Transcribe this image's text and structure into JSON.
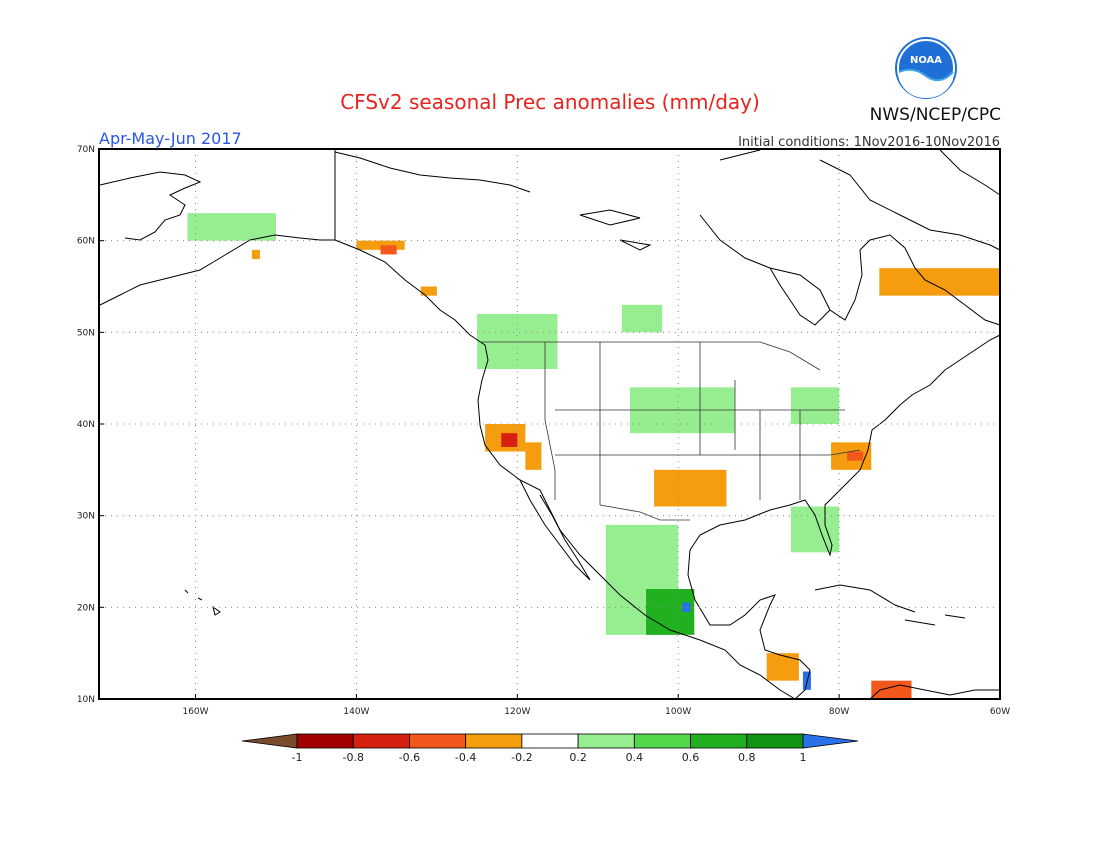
{
  "title": "CFSv2 seasonal Prec anomalies (mm/day)",
  "season": "Apr-May-Jun 2017",
  "initial_conditions": "Initial conditions: 1Nov2016-10Nov2016",
  "agency": "NWS/NCEP/CPC",
  "logo_text": "NOAA",
  "colors": {
    "title": "#e8231f",
    "season": "#2a55e6",
    "text": "#222222"
  },
  "map": {
    "lon_range": [
      -172,
      -60
    ],
    "lat_range": [
      10,
      70
    ],
    "lat_ticks": [
      {
        "value": 70,
        "label": "70N"
      },
      {
        "value": 60,
        "label": "60N"
      },
      {
        "value": 50,
        "label": "50N"
      },
      {
        "value": 40,
        "label": "40N"
      },
      {
        "value": 30,
        "label": "30N"
      },
      {
        "value": 20,
        "label": "20N"
      },
      {
        "value": 10,
        "label": "10N"
      }
    ],
    "lon_ticks": [
      {
        "value": -160,
        "label": "160W"
      },
      {
        "value": -140,
        "label": "140W"
      },
      {
        "value": -120,
        "label": "120W"
      },
      {
        "value": -100,
        "label": "100W"
      },
      {
        "value": -80,
        "label": "80W"
      },
      {
        "value": -60,
        "label": "60W"
      }
    ],
    "grid": "dotted"
  },
  "colorbar": {
    "labels": [
      "-1",
      "-0.8",
      "-0.6",
      "-0.4",
      "-0.2",
      "0.2",
      "0.4",
      "0.6",
      "0.8",
      "1"
    ],
    "bins": [
      {
        "range": "< -1",
        "color": "#7a4a2a"
      },
      {
        "range": "-1 to -0.8",
        "color": "#a00000"
      },
      {
        "range": "-0.8 to -0.6",
        "color": "#d62010"
      },
      {
        "range": "-0.6 to -0.4",
        "color": "#f2581c"
      },
      {
        "range": "-0.4 to -0.2",
        "color": "#f59d0f"
      },
      {
        "range": "-0.2 to 0.2",
        "color": "#ffffff"
      },
      {
        "range": "0.2 to 0.4",
        "color": "#96ee90"
      },
      {
        "range": "0.4 to 0.6",
        "color": "#50d84a"
      },
      {
        "range": "0.6 to 0.8",
        "color": "#20b020"
      },
      {
        "range": "0.8 to 1",
        "color": "#119411"
      },
      {
        "range": "> 1",
        "color": "#2a70e8"
      }
    ]
  },
  "anomaly_regions": [
    {
      "name": "Alaska west",
      "value": 0.3,
      "lon": [
        -161,
        -150
      ],
      "lat": [
        60,
        63
      ]
    },
    {
      "name": "Alaska southwest",
      "value": -0.3,
      "lon": [
        -153,
        -152
      ],
      "lat": [
        58,
        59
      ]
    },
    {
      "name": "Gulf of Alaska coast",
      "value": -0.3,
      "lon": [
        -140,
        -134
      ],
      "lat": [
        59,
        60
      ]
    },
    {
      "name": "Alaska panhandle",
      "value": -0.5,
      "lon": [
        -137,
        -135
      ],
      "lat": [
        58.5,
        59.5
      ]
    },
    {
      "name": "British Columbia coast",
      "value": -0.3,
      "lon": [
        -132,
        -130
      ],
      "lat": [
        54,
        55
      ]
    },
    {
      "name": "Labrador / Quebec",
      "value": -0.3,
      "lon": [
        -75,
        -60
      ],
      "lat": [
        54,
        57
      ]
    },
    {
      "name": "Western Canada",
      "value": 0.3,
      "lon": [
        -125,
        -115
      ],
      "lat": [
        46,
        52
      ]
    },
    {
      "name": "Saskatchewan",
      "value": 0.3,
      "lon": [
        -107,
        -102
      ],
      "lat": [
        50,
        53
      ]
    },
    {
      "name": "US Northern Plains",
      "value": 0.3,
      "lon": [
        -106,
        -93
      ],
      "lat": [
        39,
        44
      ]
    },
    {
      "name": "Great Lakes east",
      "value": 0.3,
      "lon": [
        -86,
        -80
      ],
      "lat": [
        40,
        44
      ]
    },
    {
      "name": "California",
      "value": -0.4,
      "lon": [
        -124,
        -119
      ],
      "lat": [
        37,
        40
      ]
    },
    {
      "name": "Central California",
      "value": -0.7,
      "lon": [
        -122,
        -120
      ],
      "lat": [
        37.5,
        39
      ]
    },
    {
      "name": "Nevada",
      "value": -0.3,
      "lon": [
        -119,
        -117
      ],
      "lat": [
        35,
        38
      ]
    },
    {
      "name": "Virginia / North Carolina",
      "value": -0.3,
      "lon": [
        -81,
        -76
      ],
      "lat": [
        35,
        38
      ]
    },
    {
      "name": "Virginia core",
      "value": -0.5,
      "lon": [
        -79,
        -77
      ],
      "lat": [
        36,
        37
      ]
    },
    {
      "name": "Texas",
      "value": -0.3,
      "lon": [
        -103,
        -94
      ],
      "lat": [
        31,
        35
      ]
    },
    {
      "name": "Florida / Southeast",
      "value": 0.3,
      "lon": [
        -86,
        -80
      ],
      "lat": [
        26,
        31
      ]
    },
    {
      "name": "Mexico west",
      "value": 0.4,
      "lon": [
        -109,
        -100
      ],
      "lat": [
        17,
        29
      ]
    },
    {
      "name": "Mexico central",
      "value": 0.7,
      "lon": [
        -104,
        -98
      ],
      "lat": [
        17,
        22
      ]
    },
    {
      "name": "Mexico core",
      "value": 1.1,
      "lon": [
        -99.5,
        -98.5
      ],
      "lat": [
        19.5,
        20.5
      ]
    },
    {
      "name": "Central America",
      "value": -0.3,
      "lon": [
        -89,
        -85
      ],
      "lat": [
        12,
        15
      ]
    },
    {
      "name": "Nicaragua",
      "value": 1.1,
      "lon": [
        -84.5,
        -83.5
      ],
      "lat": [
        11,
        13
      ]
    },
    {
      "name": "South America north",
      "value": -0.6,
      "lon": [
        -76,
        -71
      ],
      "lat": [
        10,
        12
      ]
    }
  ]
}
